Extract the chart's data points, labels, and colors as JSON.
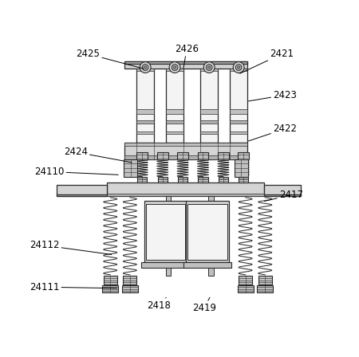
{
  "bg": "#ffffff",
  "lc": "#2a2a2a",
  "gray1": "#e8e8e8",
  "gray2": "#d4d4d4",
  "gray3": "#c0c0c0",
  "gray4": "#b0b0b0",
  "gray5": "#a0a0a0",
  "gray6": "#f4f4f4",
  "gray7": "#dcdcdc"
}
